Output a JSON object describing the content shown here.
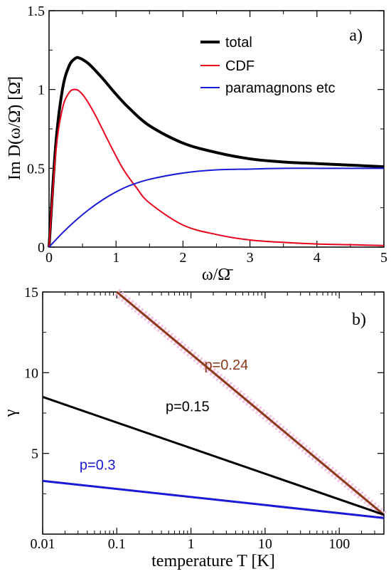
{
  "chart_data": [
    {
      "type": "line",
      "panel_label": "a)",
      "ylabel": "Im D(ω/Ω̄) [Ω̄]",
      "xlabel": "ω/Ω̄",
      "xlim": [
        0,
        5
      ],
      "ylim": [
        0,
        1.5
      ],
      "x_ticks": [
        0,
        1,
        2,
        3,
        4,
        5
      ],
      "y_ticks": [
        0,
        0.5,
        1,
        1.5
      ],
      "x_tick_labels": [
        "0",
        "1",
        "2",
        "3",
        "4",
        "5"
      ],
      "y_tick_labels": [
        "0",
        "0.5",
        "1",
        "1.5"
      ],
      "legend_position": "top-right",
      "series": [
        {
          "name": "total",
          "color": "#000000",
          "x": [
            0,
            0.1,
            0.2,
            0.3,
            0.4,
            0.45,
            0.5,
            0.6,
            0.8,
            1.0,
            1.2,
            1.5,
            2.0,
            2.5,
            3.0,
            3.5,
            4.0,
            4.5,
            5.0
          ],
          "y": [
            0,
            0.65,
            1.0,
            1.15,
            1.2,
            1.2,
            1.19,
            1.16,
            1.07,
            0.97,
            0.88,
            0.77,
            0.66,
            0.6,
            0.56,
            0.54,
            0.53,
            0.52,
            0.51
          ]
        },
        {
          "name": "CDF",
          "color": "#e8001c",
          "x": [
            0,
            0.1,
            0.2,
            0.3,
            0.38,
            0.45,
            0.55,
            0.7,
            0.9,
            1.1,
            1.3,
            1.5,
            2.0,
            2.5,
            3.0,
            3.5,
            4.0,
            4.5,
            5.0
          ],
          "y": [
            0,
            0.6,
            0.88,
            0.98,
            1.0,
            0.99,
            0.94,
            0.83,
            0.66,
            0.5,
            0.38,
            0.28,
            0.14,
            0.08,
            0.045,
            0.03,
            0.02,
            0.015,
            0.01
          ]
        },
        {
          "name": "paramagnons etc",
          "color": "#1a1ad6",
          "x": [
            0,
            0.2,
            0.4,
            0.6,
            0.8,
            1.0,
            1.2,
            1.5,
            2.0,
            2.5,
            3.0,
            3.5,
            4.0,
            4.5,
            5.0
          ],
          "y": [
            0,
            0.09,
            0.17,
            0.24,
            0.3,
            0.35,
            0.39,
            0.43,
            0.47,
            0.49,
            0.495,
            0.5,
            0.5,
            0.5,
            0.5
          ]
        }
      ]
    },
    {
      "type": "line",
      "panel_label": "b)",
      "ylabel": "γ",
      "xlabel": "temperature T [K]",
      "xscale": "log",
      "xlim": [
        0.01,
        400
      ],
      "ylim": [
        0,
        15
      ],
      "x_ticks": [
        0.01,
        0.1,
        1,
        10,
        100
      ],
      "y_ticks": [
        5,
        10,
        15
      ],
      "x_tick_labels": [
        "0.01",
        "0.1",
        "1",
        "10",
        "100"
      ],
      "y_tick_labels": [
        "5",
        "10",
        "15"
      ],
      "series": [
        {
          "name": "p=0.24",
          "color": "#8b3a1a",
          "x": [
            0.1,
            400
          ],
          "y": [
            15,
            1.2
          ]
        },
        {
          "name": "p=0.15",
          "color": "#000000",
          "x": [
            0.01,
            400
          ],
          "y": [
            8.5,
            1.2
          ]
        },
        {
          "name": "p=0.3",
          "color": "#1a1ad6",
          "x": [
            0.01,
            400
          ],
          "y": [
            3.3,
            1.0
          ]
        }
      ]
    }
  ]
}
